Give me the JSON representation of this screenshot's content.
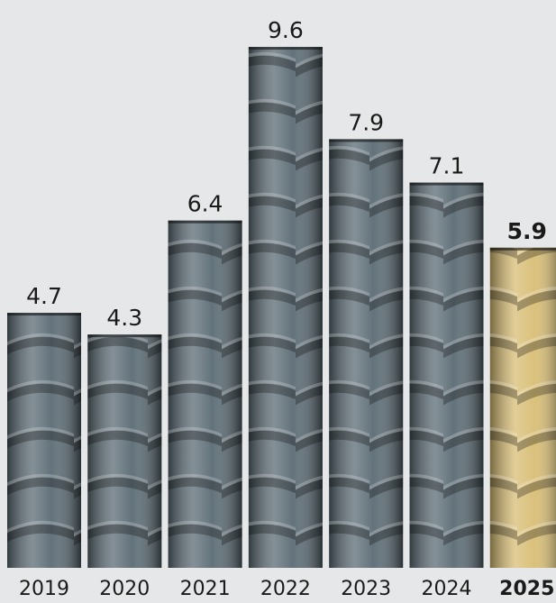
{
  "chart_data": {
    "type": "bar",
    "categories": [
      "2019",
      "2020",
      "2021",
      "2022",
      "2023",
      "2024",
      "2025"
    ],
    "values": [
      4.7,
      4.3,
      6.4,
      9.6,
      7.9,
      7.1,
      5.9
    ],
    "colors": [
      "#5b6b74",
      "#5b6b74",
      "#5b6b74",
      "#5b6b74",
      "#5b6b74",
      "#5b6b74",
      "#d8bd74"
    ],
    "highlight": 6
  }
}
